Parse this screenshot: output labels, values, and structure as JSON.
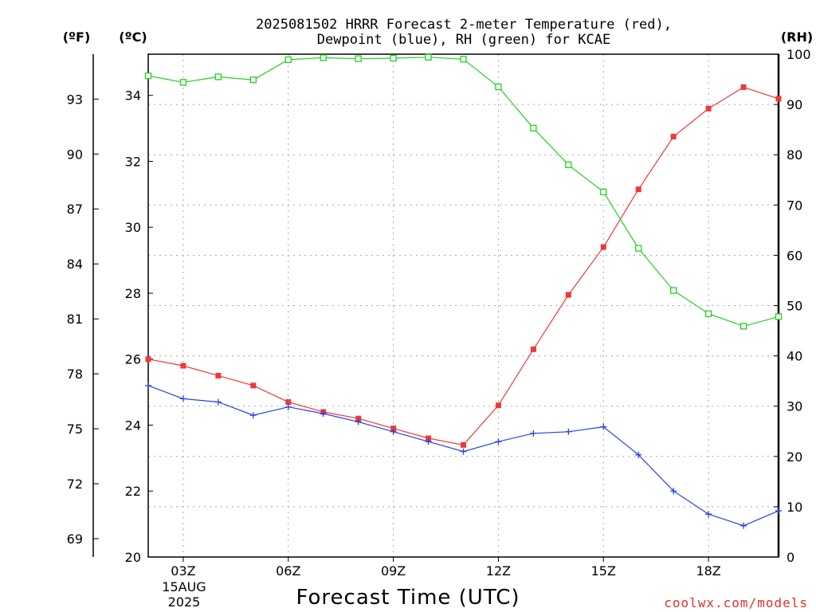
{
  "chart_data": {
    "type": "line",
    "title_lines": [
      "2025081502 HRRR Forecast 2-meter Temperature (red),",
      "Dewpoint (blue), RH (green) for KCAE"
    ],
    "xlabel": "Forecast Time (UTC)",
    "credit": "coolwx.com/models",
    "date_label_1": "15AUG",
    "date_label_2": "2025",
    "unit_f": "(ºF)",
    "unit_c": "(ºC)",
    "unit_rh": "(RH)",
    "x": [
      2,
      3,
      4,
      5,
      6,
      7,
      8,
      9,
      10,
      11,
      12,
      13,
      14,
      15,
      16,
      17,
      18,
      19,
      20
    ],
    "xlim": [
      2,
      20
    ],
    "x_ticks": [
      {
        "value": 3,
        "label": "03Z"
      },
      {
        "value": 6,
        "label": "06Z"
      },
      {
        "value": 9,
        "label": "09Z"
      },
      {
        "value": 12,
        "label": "12Z"
      },
      {
        "value": 15,
        "label": "15Z"
      },
      {
        "value": 18,
        "label": "18Z"
      }
    ],
    "y_left_c": {
      "lim": [
        20,
        35.25
      ],
      "ticks": [
        20,
        22,
        24,
        26,
        28,
        30,
        32,
        34
      ],
      "labels": [
        "20",
        "22",
        "24",
        "26",
        "28",
        "30",
        "32",
        "34"
      ]
    },
    "y_left_f": {
      "ticks": [
        69,
        72,
        75,
        78,
        81,
        84,
        87,
        90,
        93
      ],
      "labels": [
        "69",
        "72",
        "75",
        "78",
        "81",
        "84",
        "87",
        "90",
        "93"
      ]
    },
    "y_right_rh": {
      "lim": [
        0,
        100
      ],
      "ticks": [
        0,
        10,
        20,
        30,
        40,
        50,
        60,
        70,
        80,
        90,
        100
      ],
      "labels": [
        "0",
        "10",
        "20",
        "30",
        "40",
        "50",
        "60",
        "70",
        "80",
        "90",
        "100"
      ]
    },
    "series": [
      {
        "name": "Temperature",
        "axis": "c",
        "color": "#f03838",
        "marker": "filled-square",
        "values": [
          26.0,
          25.8,
          25.5,
          25.2,
          24.7,
          24.4,
          24.2,
          23.9,
          23.6,
          23.4,
          24.6,
          26.3,
          27.95,
          29.4,
          31.15,
          32.75,
          33.6,
          34.25,
          33.9
        ]
      },
      {
        "name": "Dewpoint",
        "axis": "c",
        "color": "#2840e8",
        "marker": "plus",
        "values": [
          25.2,
          24.8,
          24.7,
          24.3,
          24.55,
          24.35,
          24.1,
          23.8,
          23.5,
          23.2,
          23.5,
          23.75,
          23.8,
          23.95,
          23.1,
          22.0,
          21.3,
          20.95,
          21.4
        ]
      },
      {
        "name": "RH",
        "axis": "rh",
        "color": "#22d022",
        "marker": "open-square",
        "values": [
          95.7,
          94.4,
          95.5,
          94.9,
          98.9,
          99.3,
          99.1,
          99.2,
          99.4,
          99.0,
          93.5,
          85.3,
          78.0,
          72.6,
          61.4,
          53.0,
          48.4,
          45.9,
          47.8
        ]
      }
    ]
  }
}
